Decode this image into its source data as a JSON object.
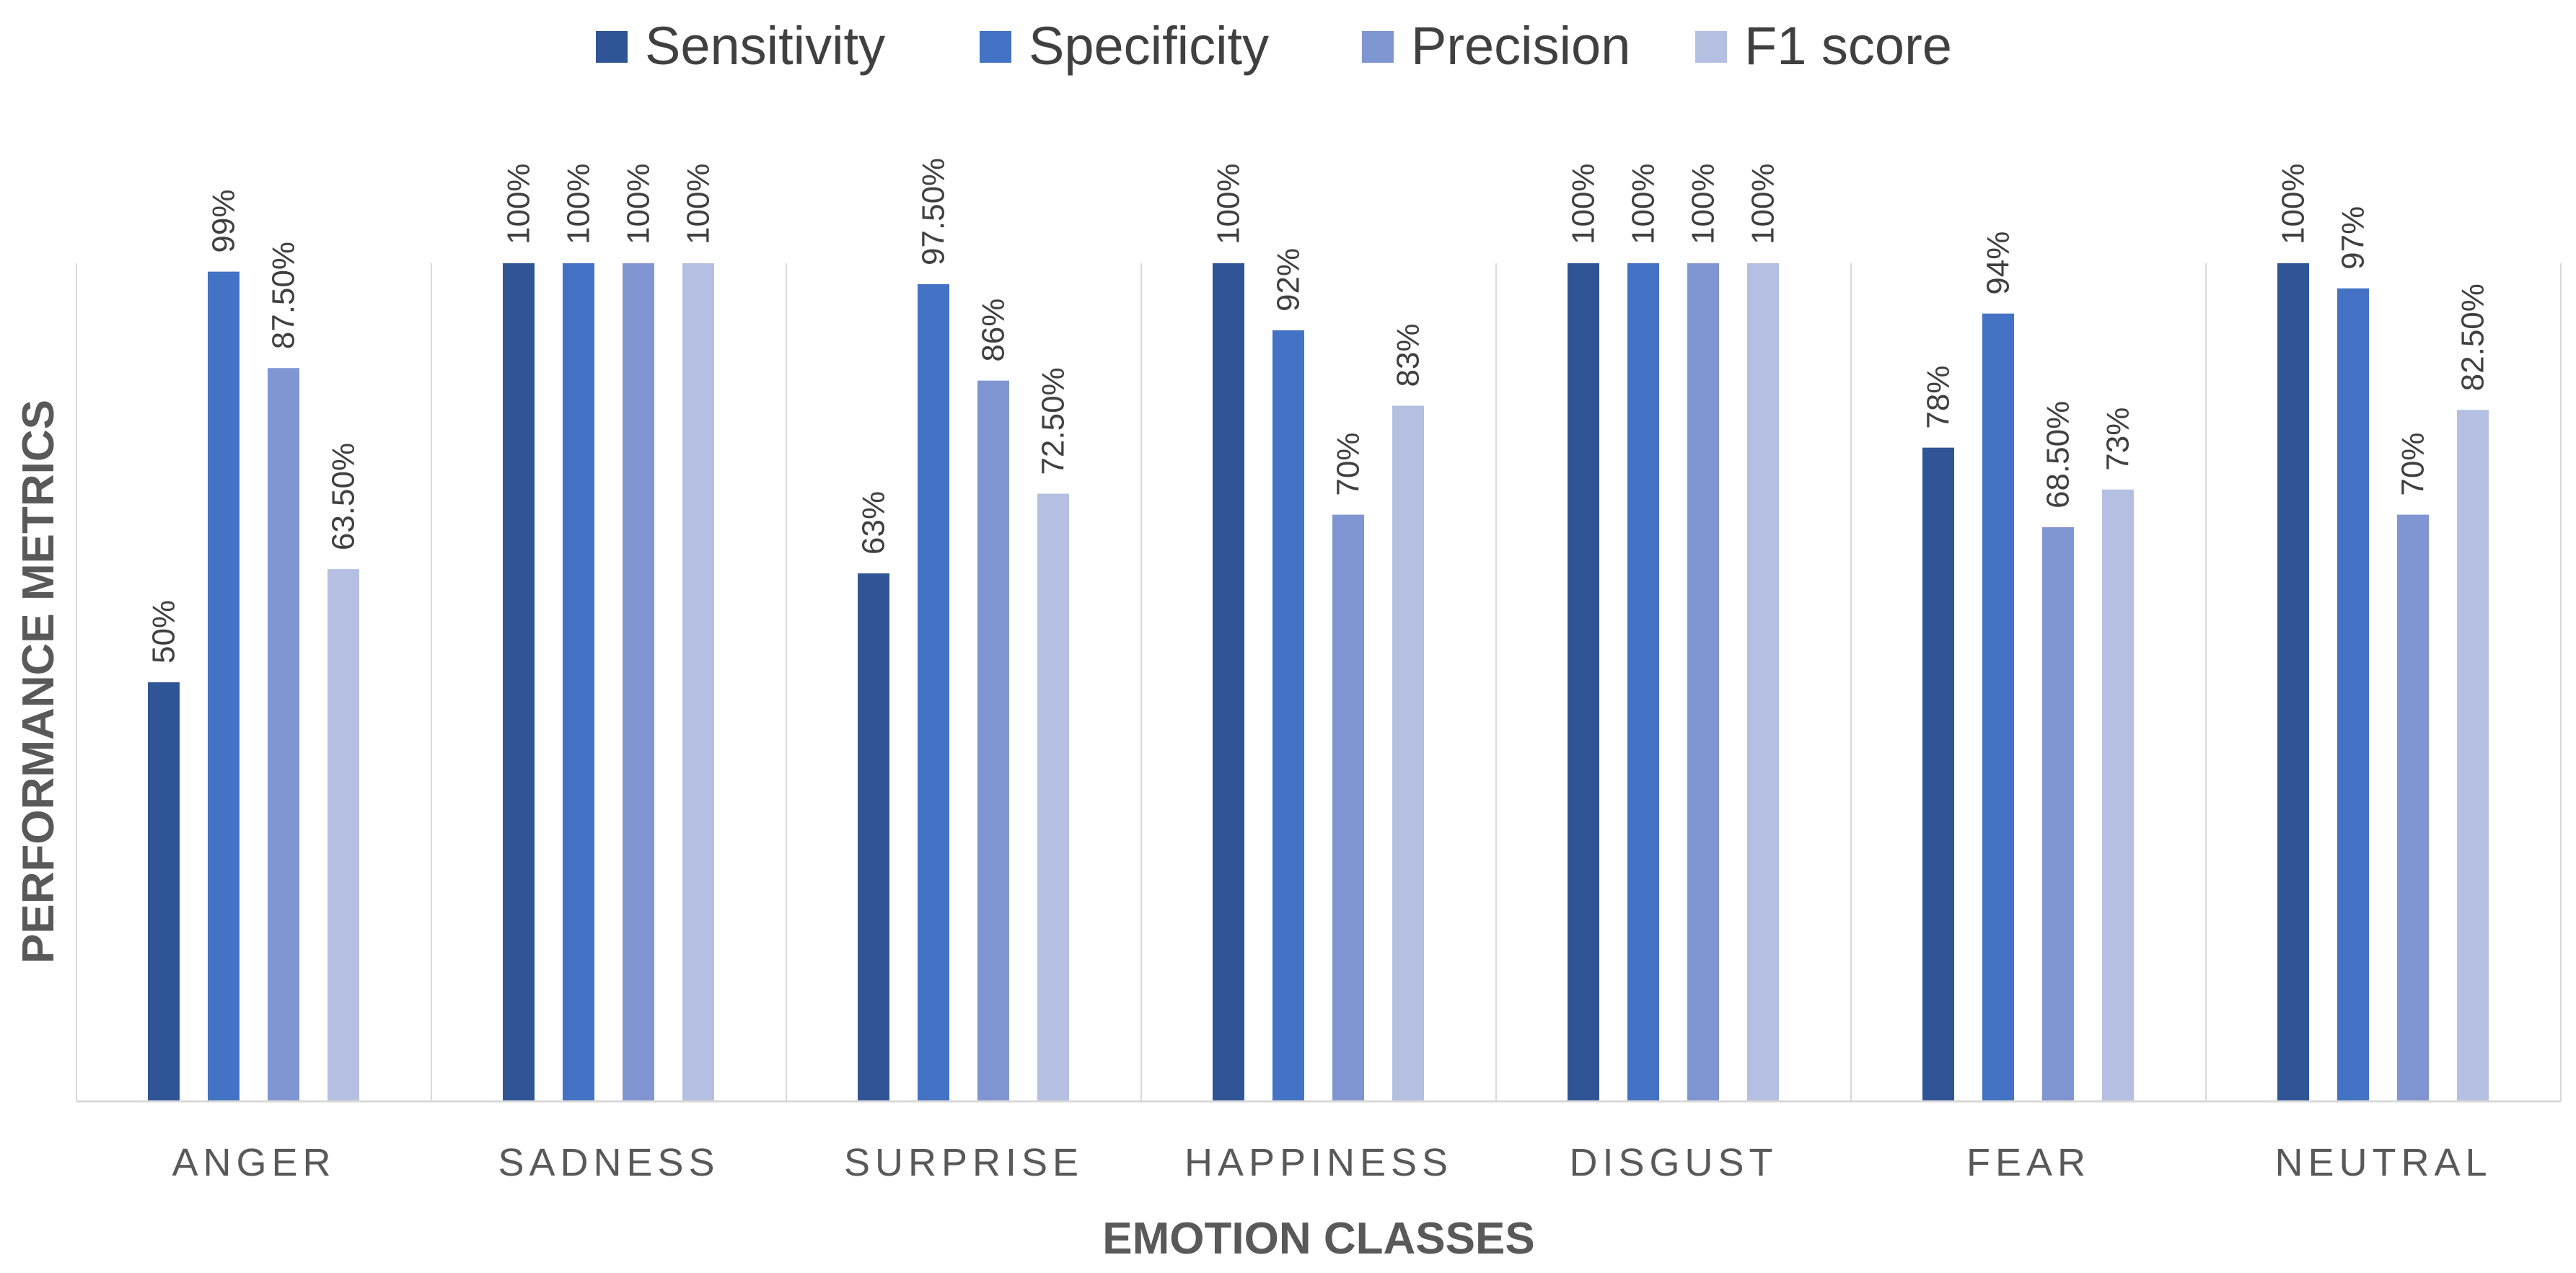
{
  "chart_data": {
    "type": "bar",
    "title": "",
    "xlabel": "EMOTION CLASSES",
    "ylabel": "PERFORMANCE METRICS",
    "ylim": [
      0,
      100
    ],
    "grid": false,
    "legend_position": "top",
    "categories": [
      "ANGER",
      "SADNESS",
      "SURPRISE",
      "HAPPINESS",
      "DISGUST",
      "FEAR",
      "NEUTRAL"
    ],
    "series": [
      {
        "name": "Sensitivity",
        "color": "#2F5597",
        "values": [
          50,
          100,
          63,
          100,
          100,
          78,
          100
        ],
        "labels": [
          "50%",
          "100%",
          "63%",
          "100%",
          "100%",
          "78%",
          "100%"
        ]
      },
      {
        "name": "Specificity",
        "color": "#4472C4",
        "values": [
          99,
          100,
          97.5,
          92,
          100,
          94,
          97
        ],
        "labels": [
          "99%",
          "100%",
          "97.50%",
          "92%",
          "100%",
          "94%",
          "97%"
        ]
      },
      {
        "name": "Precision",
        "color": "#7F96D2",
        "values": [
          87.5,
          100,
          86,
          70,
          100,
          68.5,
          70
        ],
        "labels": [
          "87.50%",
          "100%",
          "86%",
          "70%",
          "100%",
          "68.50%",
          "70%"
        ]
      },
      {
        "name": "F1 score",
        "color": "#B4BFE2",
        "values": [
          63.5,
          100,
          72.5,
          83,
          100,
          73,
          82.5
        ],
        "labels": [
          "63.50%",
          "100%",
          "72.50%",
          "83%",
          "100%",
          "73%",
          "82.50%"
        ]
      }
    ],
    "axis_line_color": "#D9D9D9"
  }
}
